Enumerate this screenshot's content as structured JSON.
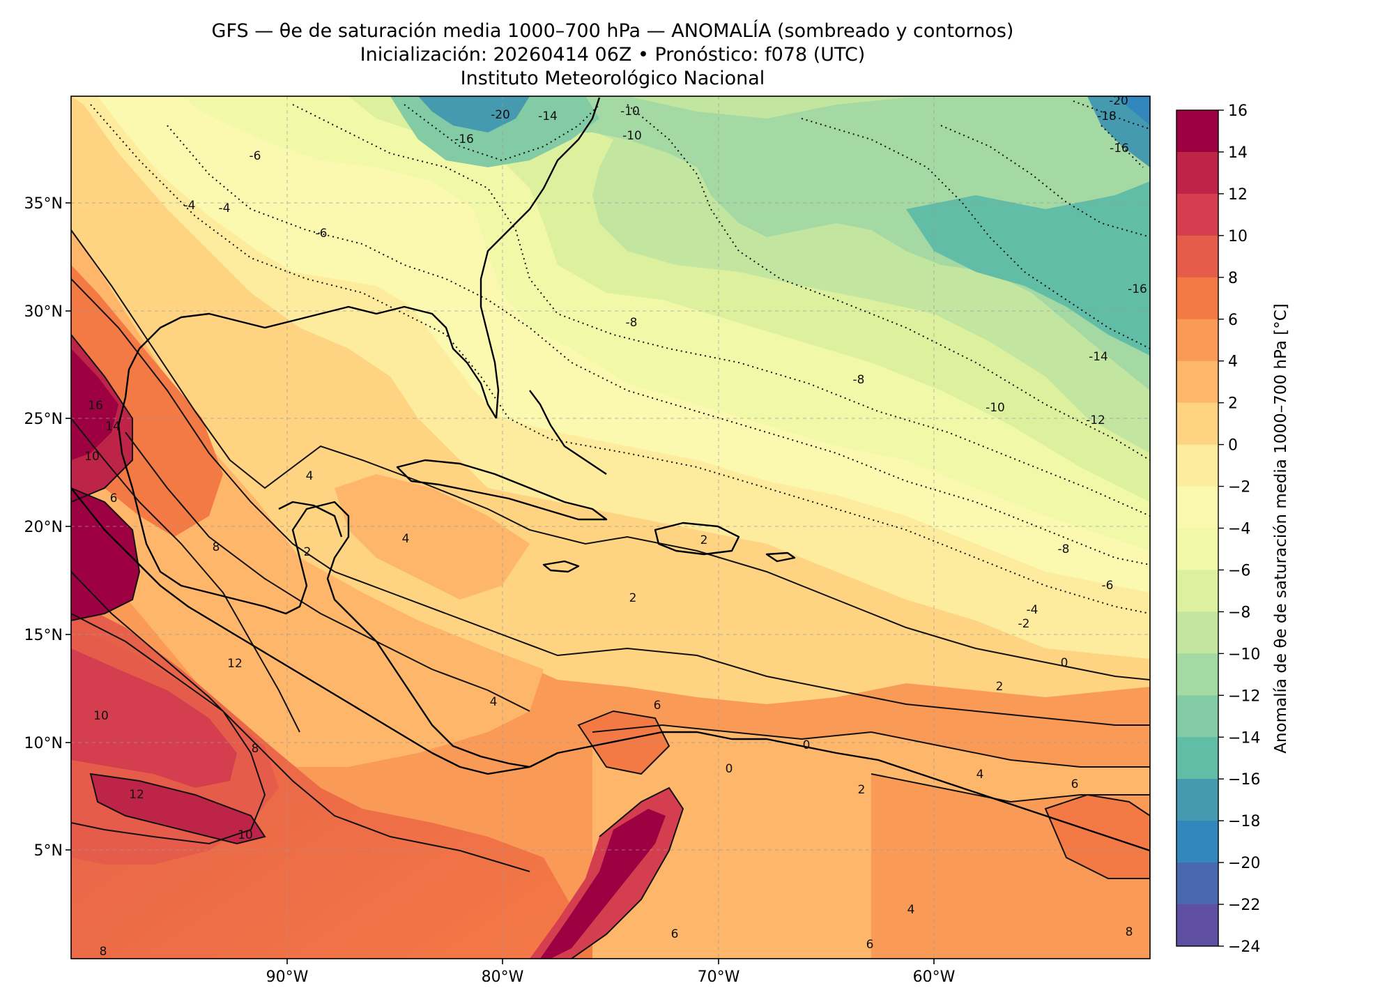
{
  "title": {
    "line1": "GFS — θe de saturación media 1000–700 hPa — ANOMALÍA (sombreado y contornos)",
    "line2": "Inicialización: 20260414 06Z   •   Pronóstico: f078 (UTC)",
    "line3": "Instituto Meteorológico Nacional"
  },
  "map": {
    "lat_labels": [
      "35°N",
      "30°N",
      "25°N",
      "20°N",
      "15°N",
      "10°N",
      "5°N"
    ],
    "lat_values": [
      35,
      30,
      25,
      20,
      15,
      10,
      5
    ],
    "lon_labels": [
      "90°W",
      "80°W",
      "70°W",
      "60°W"
    ],
    "lon_values": [
      -90,
      -80,
      -70,
      -60
    ],
    "extent": {
      "lon_min": -100,
      "lon_max": -50,
      "lat_min": 0,
      "lat_max": 40
    },
    "gridlines": "dashed, light grey"
  },
  "colorbar": {
    "title": "Anomalía de θe de saturación media 1000–700 hPa [°C]",
    "ticks": [
      "16",
      "14",
      "12",
      "10",
      "8",
      "6",
      "4",
      "2",
      "0",
      "−2",
      "−4",
      "−6",
      "−8",
      "−10",
      "−12",
      "−14",
      "−16",
      "−18",
      "−20",
      "−22",
      "−24"
    ],
    "levels_top_to_bottom": [
      16,
      14,
      12,
      10,
      8,
      6,
      4,
      2,
      0,
      -2,
      -4,
      -6,
      -8,
      -10,
      -12,
      -14,
      -16,
      -18,
      -20,
      -22,
      -24
    ],
    "colors_top_to_bottom": [
      "#9e0142",
      "#be2348",
      "#d53e4f",
      "#e55d4a",
      "#f47a45",
      "#f99a57",
      "#fdb66a",
      "#fed382",
      "#feec9e",
      "#fbf8b0",
      "#f1f9a9",
      "#dcf09e",
      "#c2e5a0",
      "#a4d9a4",
      "#83cba4",
      "#62bda6",
      "#459aaf",
      "#3288bd",
      "#4a68ad",
      "#5e4fa2"
    ],
    "colormap": "Spectral_r"
  },
  "contour_labels": [
    "-20",
    "-20",
    "-18",
    "-16",
    "-16",
    "-16",
    "-14",
    "-14",
    "-12",
    "-10",
    "-10",
    "-10",
    "-8",
    "-8",
    "-8",
    "-6",
    "-6",
    "-6",
    "-4",
    "-4",
    "-4",
    "-2",
    "0",
    "2",
    "2",
    "2",
    "4",
    "4",
    "4",
    "4",
    "6",
    "6",
    "6",
    "8",
    "8",
    "8",
    "10",
    "10",
    "10",
    "12",
    "12",
    "14",
    "16",
    "0",
    "2",
    "0",
    "2",
    "6",
    "4",
    "6",
    "8"
  ],
  "field_features": {
    "gulf_of_mexico_anomaly": 4,
    "florida_peninsula_anomaly": -4,
    "eastern_atlantic_min_anomaly": -16,
    "eastern_pacific_max_anomaly": 12,
    "central_mexico_max_anomaly": 16,
    "caribbean_sea_anomaly": 2
  }
}
